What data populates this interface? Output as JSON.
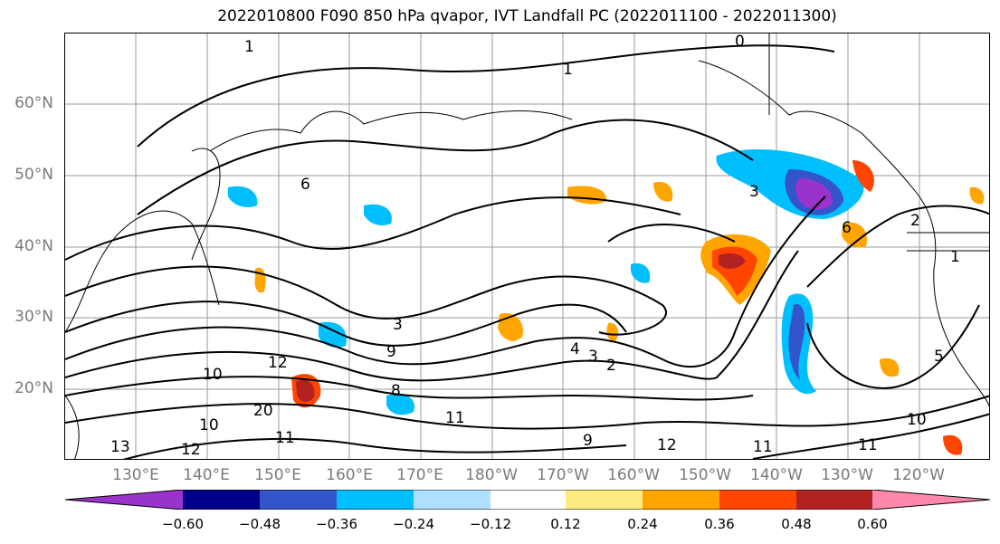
{
  "title": "2022010800 F090 850 hPa qvapor, IVT Landfall PC (2022011100 - 2022011300)",
  "lat_labels": [
    "60°N",
    "50°N",
    "40°N",
    "30°N",
    "20°N"
  ],
  "lon_labels": [
    "130°E",
    "140°E",
    "150°E",
    "160°E",
    "170°E",
    "180°W",
    "170°W",
    "160°W",
    "150°W",
    "140°W",
    "130°W",
    "120°W"
  ],
  "contour_labels": [
    "1",
    "0",
    "1",
    "3",
    "6",
    "3",
    "9",
    "4",
    "3",
    "2",
    "12",
    "10",
    "10",
    "20",
    "11",
    "13",
    "12",
    "11",
    "9",
    "12",
    "11",
    "11",
    "10",
    "5",
    "1",
    "2",
    "6",
    "8"
  ],
  "colorbar": {
    "ticks": [
      "−0.60",
      "−0.48",
      "−0.36",
      "−0.24",
      "−0.12",
      "0.12",
      "0.24",
      "0.36",
      "0.48",
      "0.60"
    ],
    "colors": [
      "#9933cc",
      "#00008b",
      "#3355cc",
      "#00bfff",
      "#b0e0ff",
      "#ffffff",
      "#ffea80",
      "#ffa500",
      "#ff4500",
      "#b22222",
      "#ff88aa"
    ]
  }
}
